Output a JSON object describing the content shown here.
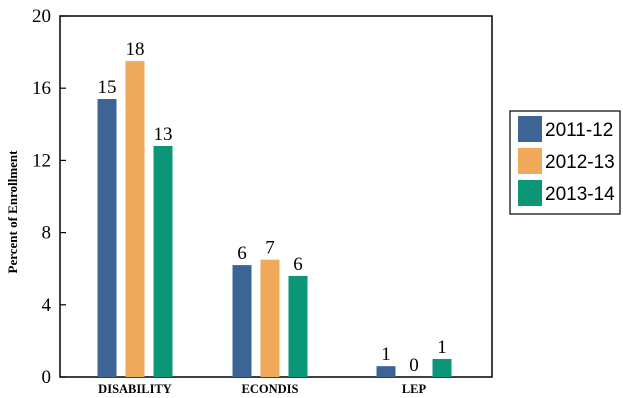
{
  "chart_data": {
    "type": "bar",
    "title": "",
    "xlabel": "",
    "ylabel": "Percent of Enrollment",
    "ylim": [
      0,
      20
    ],
    "yticks": [
      0,
      4,
      8,
      12,
      16,
      20
    ],
    "grid": false,
    "legend_position": "right",
    "categories": [
      "DISABILITY",
      "ECONDIS",
      "LEP"
    ],
    "series": [
      {
        "name": "2011-12",
        "color": "#3c6596",
        "values": [
          15.4,
          6.2,
          0.6
        ],
        "labels": [
          "15",
          "6",
          "1"
        ]
      },
      {
        "name": "2012-13",
        "color": "#f0a95b",
        "values": [
          17.5,
          6.5,
          0.0
        ],
        "labels": [
          "18",
          "7",
          "0"
        ]
      },
      {
        "name": "2013-14",
        "color": "#0a9677",
        "values": [
          12.8,
          5.6,
          1.0
        ],
        "labels": [
          "13",
          "6",
          "1"
        ]
      }
    ]
  }
}
